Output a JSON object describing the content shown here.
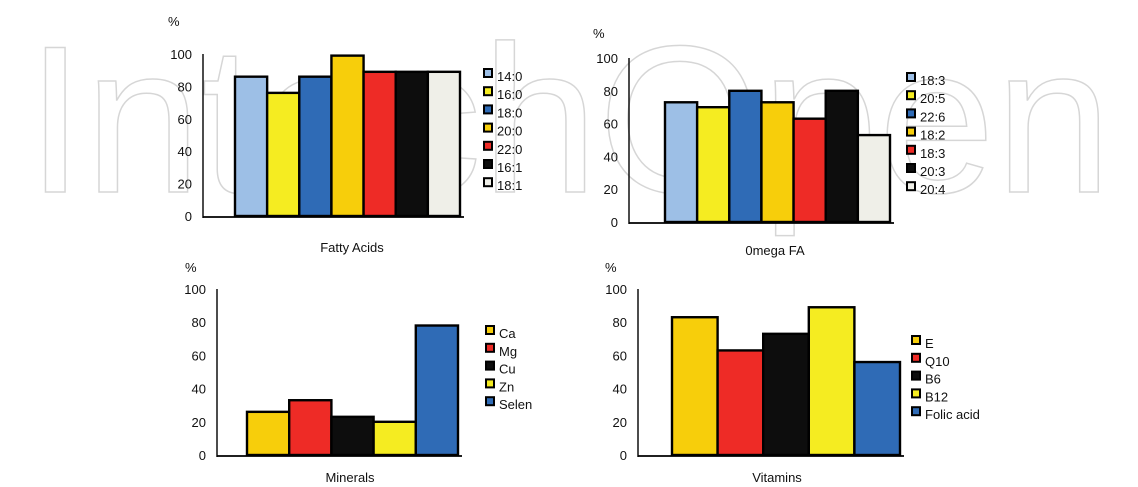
{
  "watermark_text": "IntechOpen",
  "chart_data": [
    {
      "type": "bar",
      "title": "Fatty Acids",
      "ylabel": "%",
      "ylim": [
        0,
        100
      ],
      "yticks": [
        0,
        20,
        40,
        60,
        80,
        100
      ],
      "categories": [
        "14:0",
        "16:0",
        "18:0",
        "20:0",
        "22:0",
        "16:1",
        "18:1"
      ],
      "values": [
        86,
        76,
        86,
        99,
        89,
        89,
        89
      ],
      "colors": [
        "#9dbfe6",
        "#f5ec21",
        "#2f6bb6",
        "#f7ce0b",
        "#ee2b26",
        "#0d0d0d",
        "#efefe8"
      ],
      "legend": [
        "14:0",
        "16:0",
        "18:0",
        "20:0",
        "22:0",
        "16:1",
        "18:1"
      ],
      "grid": false,
      "legend_position": "right"
    },
    {
      "type": "bar",
      "title": "0mega FA",
      "ylabel": "%",
      "ylim": [
        0,
        100
      ],
      "yticks": [
        0,
        20,
        40,
        60,
        80,
        100
      ],
      "categories": [
        "18:3",
        "20:5",
        "22:6",
        "18:2",
        "18:3",
        "20:3",
        "20:4"
      ],
      "values": [
        73,
        70,
        80,
        73,
        63,
        80,
        53
      ],
      "colors": [
        "#9dbfe6",
        "#f5ec21",
        "#2f6bb6",
        "#f7ce0b",
        "#ee2b26",
        "#0d0d0d",
        "#efefe8"
      ],
      "legend": [
        "18:3",
        "20:5",
        "22:6",
        "18:2",
        "18:3",
        "20:3",
        "20:4"
      ],
      "grid": false,
      "legend_position": "right"
    },
    {
      "type": "bar",
      "title": "Minerals",
      "ylabel": "%",
      "ylim": [
        0,
        100
      ],
      "yticks": [
        0,
        20,
        40,
        60,
        80,
        100
      ],
      "categories": [
        "Ca",
        "Mg",
        "Cu",
        "Zn",
        "Selen"
      ],
      "values": [
        26,
        33,
        23,
        20,
        78
      ],
      "colors": [
        "#f7ce0b",
        "#ee2b26",
        "#0d0d0d",
        "#f5ec21",
        "#2f6bb6"
      ],
      "legend": [
        "Ca",
        "Mg",
        "Cu",
        "Zn",
        "Selen"
      ],
      "grid": false,
      "legend_position": "right"
    },
    {
      "type": "bar",
      "title": "Vitamins",
      "ylabel": "%",
      "ylim": [
        0,
        100
      ],
      "yticks": [
        0,
        20,
        40,
        60,
        80,
        100
      ],
      "categories": [
        "E",
        "Q10",
        "B6",
        "B12",
        "Folic acid"
      ],
      "values": [
        83,
        63,
        73,
        89,
        56
      ],
      "colors": [
        "#f7ce0b",
        "#ee2b26",
        "#0d0d0d",
        "#f5ec21",
        "#2f6bb6"
      ],
      "legend": [
        "E",
        "Q10",
        "B6",
        "B12",
        "Folic acid"
      ],
      "grid": false,
      "legend_position": "right"
    }
  ]
}
